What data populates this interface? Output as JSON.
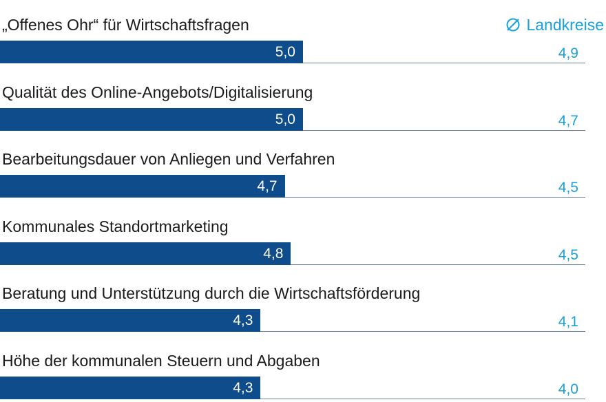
{
  "chart_data": {
    "type": "bar",
    "orientation": "horizontal",
    "categories": [
      "„Offenes Ohr“ für Wirtschaftsfragen",
      "Qualität des Online-Angebots/Digitalisierung",
      "Bearbeitungsdauer von Anliegen und Verfahren",
      "Kommunales Standortmarketing",
      "Beratung und Unterstützung durch die Wirtschaftsförderung",
      "Höhe der kommunalen Steuern und Abgaben"
    ],
    "values": [
      5.0,
      5.0,
      4.7,
      4.8,
      4.3,
      4.3
    ],
    "value_labels": [
      "5,0",
      "5,0",
      "4,7",
      "4,8",
      "4,3",
      "4,3"
    ],
    "comparison": {
      "name": "Landkreise",
      "symbol": "∅",
      "values": [
        4.9,
        4.7,
        4.5,
        4.5,
        4.1,
        4.0
      ],
      "value_labels": [
        "4,9",
        "4,7",
        "4,5",
        "4,5",
        "4,1",
        "4,0"
      ]
    },
    "xlim": [
      0,
      10
    ],
    "colors": {
      "bar": "#0f4c8c",
      "comparison": "#1aa0d8",
      "label": "#1a1a1a",
      "track": "#6a7f9c"
    },
    "legend_position": "top-right",
    "grid": false
  }
}
